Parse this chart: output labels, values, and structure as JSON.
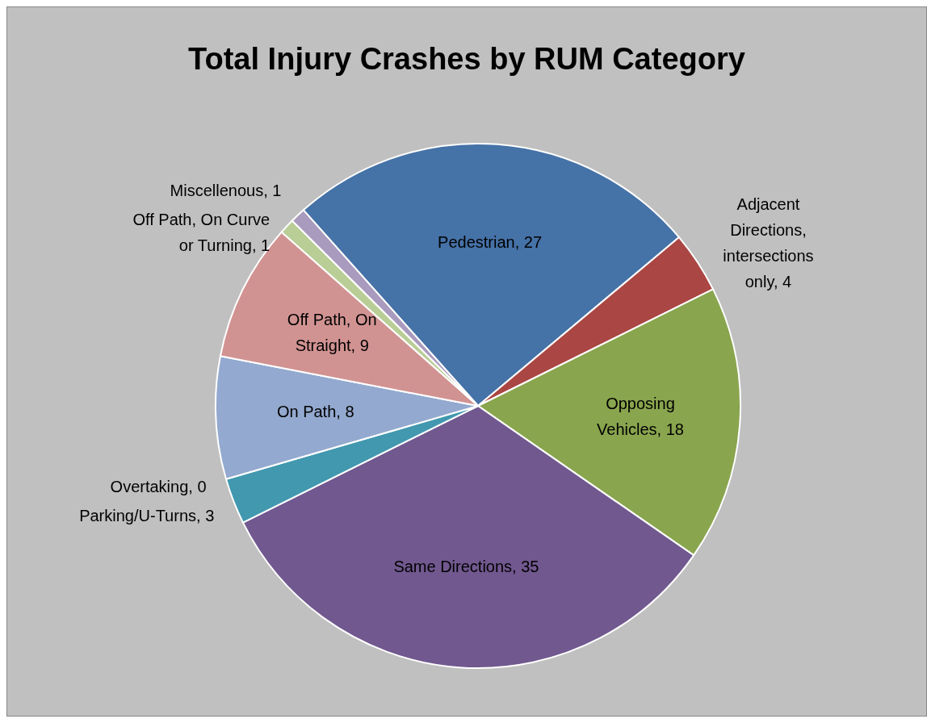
{
  "chart_data": {
    "type": "pie",
    "title": "Total Injury Crashes by RUM Category",
    "categories": [
      "Pedestrian",
      "Adjacent Directions, intersections only",
      "Opposing Vehicles",
      "Same Directions",
      "Parking/U-Turns",
      "Overtaking",
      "On Path",
      "Off Path, On Straight",
      "Off Path, On Curve or Turning",
      "Miscellenous"
    ],
    "values": [
      27,
      4,
      18,
      35,
      3,
      0,
      8,
      9,
      1,
      1
    ],
    "colors": [
      "#4572a7",
      "#aa4643",
      "#89a54e",
      "#71588f",
      "#4198af",
      "#db843d",
      "#93a9cf",
      "#d19392",
      "#b9cd96",
      "#a99bbd"
    ],
    "value_labels": [
      ", 27",
      ", 4",
      ", 18",
      ", 35",
      ", 3",
      ", 0",
      ", 8",
      ", 9",
      ", 1",
      ", 1"
    ],
    "legend": false
  }
}
